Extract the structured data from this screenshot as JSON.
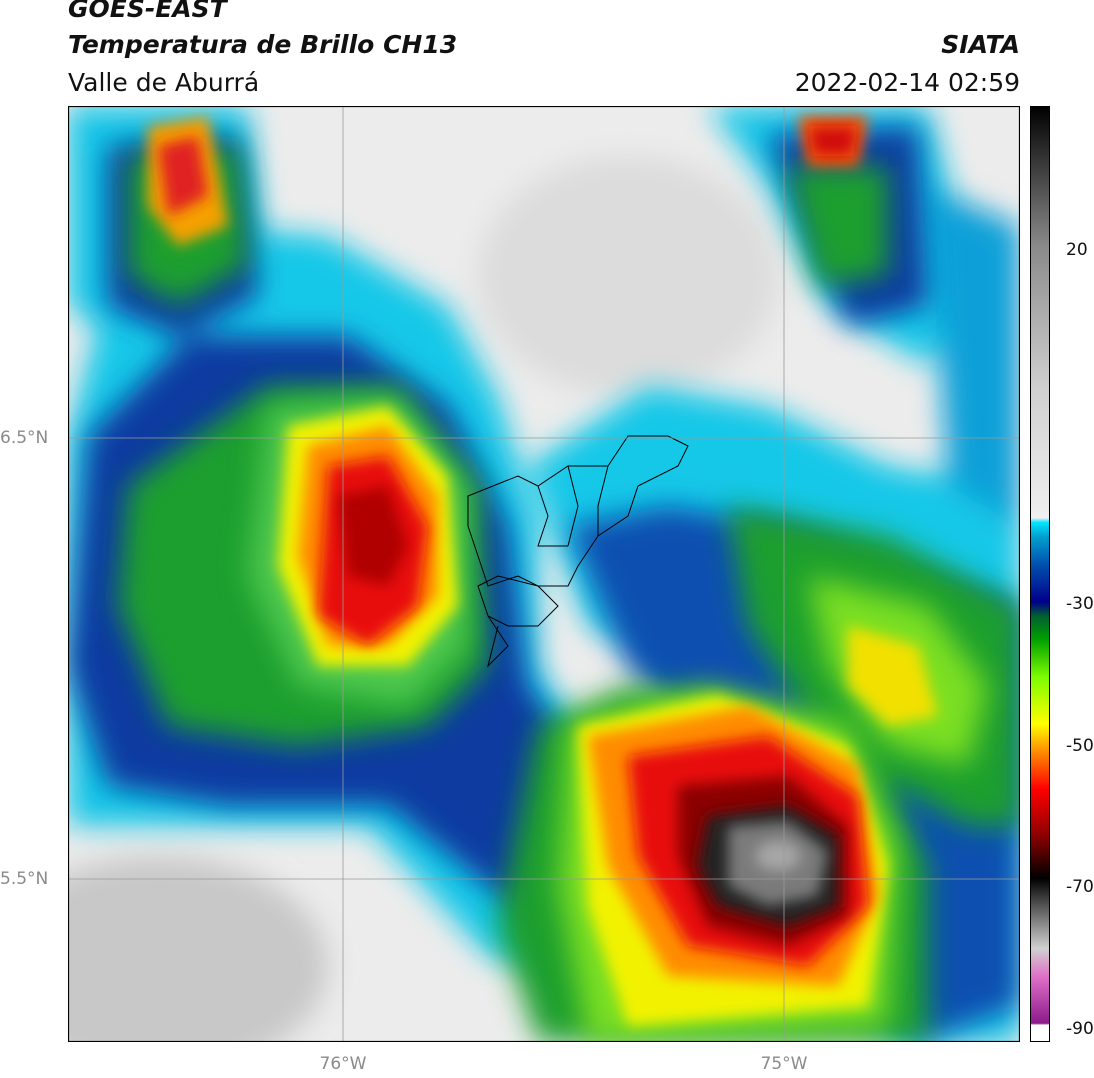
{
  "header": {
    "satellite": "GOES-EAST",
    "product": "Temperatura de Brillo CH13",
    "region": "Valle de Aburrá",
    "organization": "SIATA",
    "timestamp": "2022-02-14 02:59"
  },
  "map": {
    "lat_labels": [
      "6.5°N",
      "5.5°N"
    ],
    "lon_labels": [
      "76°W",
      "75°W"
    ],
    "gridlines": true,
    "overlay": "municipality-boundaries"
  },
  "colorbar": {
    "ticks": [
      "20",
      "-30",
      "-50",
      "-70",
      "-90"
    ],
    "scale_colors": [
      "#ffffff",
      "#8b1a8b",
      "#e070c8",
      "#d0d0d0",
      "#3a3a3a",
      "#000000",
      "#8b0000",
      "#ff0000",
      "#ff8c00",
      "#ffff00",
      "#7cfc00",
      "#00a000",
      "#006030",
      "#00008b",
      "#0050b0",
      "#00a0d0",
      "#00e5ff",
      "#f0f0f0",
      "#a0a0a0",
      "#000000"
    ]
  }
}
